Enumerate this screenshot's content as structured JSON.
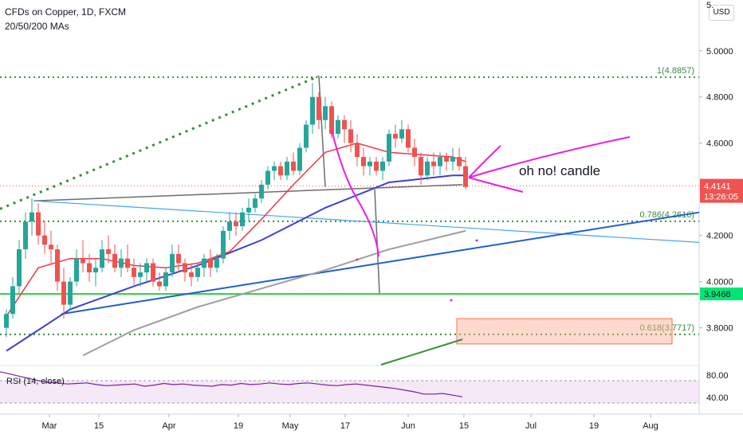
{
  "header": {
    "title": "CFDs on Copper, 1D, FXCM",
    "indicator": "20/50/200 MAs"
  },
  "currency_button": "USD",
  "annotation_text": "oh no! candle",
  "colors": {
    "up": "#26a69a",
    "down": "#ef5350",
    "ma20": "#f23645",
    "ma50": "#3f3fd6",
    "ma200": "#9e9e9e",
    "fib": "#388e3c",
    "support": "#2ecc40",
    "trend_blue": "#1e5fd1",
    "trend_light": "#42a5f5",
    "magenta": "#e91ee0",
    "rsi": "#7b1fa2"
  },
  "chart_data": [
    {
      "type": "candlestick",
      "title": "CFDs on Copper, 1D, FXCM",
      "x_ticks": [
        "Mar",
        "15",
        "Apr",
        "19",
        "May",
        "17",
        "Jun",
        "15",
        "Jul",
        "19",
        "Aug"
      ],
      "y_ticks": [
        "5.0000",
        "4.8000",
        "4.6000",
        "4.4000",
        "4.2000",
        "4.0000",
        "3.8000"
      ],
      "y_top_tick_partial": "5.",
      "ylim": [
        3.64,
        5.22
      ],
      "last_price": "4.4141",
      "countdown": "13:26:05",
      "support_level": "3.9468",
      "fib_levels": [
        {
          "label": "1(4.8857)",
          "value": 4.8857
        },
        {
          "label": "0.786(4.2616)",
          "value": 4.2616
        },
        {
          "label": "0.618(3.7717)",
          "value": 3.7717
        }
      ],
      "ohlc": [
        [
          3.8,
          3.88,
          3.76,
          3.86
        ],
        [
          3.86,
          4.02,
          3.84,
          3.98
        ],
        [
          3.98,
          4.18,
          3.95,
          4.14
        ],
        [
          4.14,
          4.3,
          4.1,
          4.26
        ],
        [
          4.26,
          4.36,
          4.2,
          4.3
        ],
        [
          4.3,
          4.34,
          4.16,
          4.2
        ],
        [
          4.2,
          4.26,
          4.12,
          4.16
        ],
        [
          4.16,
          4.22,
          4.08,
          4.14
        ],
        [
          4.14,
          4.16,
          3.96,
          4.0
        ],
        [
          4.0,
          4.06,
          3.84,
          3.9
        ],
        [
          3.9,
          4.02,
          3.88,
          4.0
        ],
        [
          4.0,
          4.14,
          3.98,
          4.1
        ],
        [
          4.1,
          4.18,
          4.04,
          4.08
        ],
        [
          4.08,
          4.12,
          4.0,
          4.04
        ],
        [
          4.04,
          4.1,
          3.98,
          4.06
        ],
        [
          4.06,
          4.18,
          4.04,
          4.14
        ],
        [
          4.14,
          4.2,
          4.08,
          4.12
        ],
        [
          4.12,
          4.16,
          4.04,
          4.06
        ],
        [
          4.06,
          4.14,
          4.02,
          4.1
        ],
        [
          4.1,
          4.16,
          4.04,
          4.06
        ],
        [
          4.06,
          4.1,
          3.98,
          4.02
        ],
        [
          4.02,
          4.08,
          3.98,
          4.04
        ],
        [
          4.04,
          4.1,
          4.0,
          4.08
        ],
        [
          4.08,
          4.1,
          3.98,
          4.0
        ],
        [
          4.0,
          4.04,
          3.96,
          3.98
        ],
        [
          3.98,
          4.06,
          3.96,
          4.04
        ],
        [
          4.04,
          4.16,
          4.02,
          4.12
        ],
        [
          4.12,
          4.16,
          4.04,
          4.08
        ],
        [
          4.08,
          4.1,
          4.0,
          4.04
        ],
        [
          4.04,
          4.08,
          3.98,
          4.02
        ],
        [
          4.02,
          4.08,
          4.0,
          4.06
        ],
        [
          4.06,
          4.12,
          4.02,
          4.1
        ],
        [
          4.1,
          4.14,
          4.02,
          4.06
        ],
        [
          4.06,
          4.12,
          4.04,
          4.1
        ],
        [
          4.1,
          4.24,
          4.08,
          4.22
        ],
        [
          4.22,
          4.3,
          4.18,
          4.26
        ],
        [
          4.26,
          4.3,
          4.2,
          4.24
        ],
        [
          4.24,
          4.32,
          4.22,
          4.3
        ],
        [
          4.3,
          4.36,
          4.26,
          4.32
        ],
        [
          4.32,
          4.38,
          4.3,
          4.36
        ],
        [
          4.36,
          4.44,
          4.34,
          4.42
        ],
        [
          4.42,
          4.5,
          4.4,
          4.48
        ],
        [
          4.48,
          4.52,
          4.44,
          4.5
        ],
        [
          4.5,
          4.52,
          4.44,
          4.46
        ],
        [
          4.46,
          4.54,
          4.44,
          4.52
        ],
        [
          4.52,
          4.56,
          4.46,
          4.48
        ],
        [
          4.48,
          4.6,
          4.46,
          4.58
        ],
        [
          4.58,
          4.7,
          4.56,
          4.68
        ],
        [
          4.68,
          4.86,
          4.64,
          4.8
        ],
        [
          4.8,
          4.82,
          4.66,
          4.7
        ],
        [
          4.7,
          4.8,
          4.66,
          4.76
        ],
        [
          4.76,
          4.78,
          4.62,
          4.64
        ],
        [
          4.64,
          4.72,
          4.62,
          4.7
        ],
        [
          4.7,
          4.72,
          4.6,
          4.66
        ],
        [
          4.66,
          4.7,
          4.56,
          4.6
        ],
        [
          4.6,
          4.64,
          4.5,
          4.54
        ],
        [
          4.54,
          4.58,
          4.46,
          4.5
        ],
        [
          4.5,
          4.54,
          4.46,
          4.52
        ],
        [
          4.52,
          4.54,
          4.46,
          4.48
        ],
        [
          4.48,
          4.54,
          4.44,
          4.52
        ],
        [
          4.52,
          4.66,
          4.5,
          4.64
        ],
        [
          4.64,
          4.68,
          4.58,
          4.62
        ],
        [
          4.62,
          4.7,
          4.6,
          4.66
        ],
        [
          4.66,
          4.68,
          4.56,
          4.58
        ],
        [
          4.58,
          4.62,
          4.5,
          4.54
        ],
        [
          4.54,
          4.56,
          4.42,
          4.46
        ],
        [
          4.46,
          4.54,
          4.44,
          4.52
        ],
        [
          4.52,
          4.56,
          4.46,
          4.5
        ],
        [
          4.5,
          4.56,
          4.46,
          4.54
        ],
        [
          4.54,
          4.56,
          4.48,
          4.52
        ],
        [
          4.52,
          4.58,
          4.48,
          4.54
        ],
        [
          4.54,
          4.58,
          4.48,
          4.5
        ],
        [
          4.5,
          4.54,
          4.4,
          4.41
        ]
      ],
      "ma20": [
        [
          0,
          3.85
        ],
        [
          5,
          4.06
        ],
        [
          10,
          4.1
        ],
        [
          15,
          4.1
        ],
        [
          20,
          4.07
        ],
        [
          25,
          4.06
        ],
        [
          30,
          4.08
        ],
        [
          35,
          4.13
        ],
        [
          40,
          4.27
        ],
        [
          45,
          4.42
        ],
        [
          50,
          4.56
        ],
        [
          55,
          4.6
        ],
        [
          60,
          4.56
        ],
        [
          65,
          4.55
        ],
        [
          70,
          4.54
        ],
        [
          72,
          4.52
        ]
      ],
      "ma50": [
        [
          0,
          3.7
        ],
        [
          10,
          3.88
        ],
        [
          20,
          3.98
        ],
        [
          30,
          4.07
        ],
        [
          40,
          4.18
        ],
        [
          50,
          4.32
        ],
        [
          60,
          4.43
        ],
        [
          70,
          4.46
        ],
        [
          72,
          4.46
        ]
      ],
      "ma200": [
        [
          12,
          3.68
        ],
        [
          20,
          3.79
        ],
        [
          30,
          3.89
        ],
        [
          40,
          3.97
        ],
        [
          50,
          4.05
        ],
        [
          60,
          4.14
        ],
        [
          72,
          4.22
        ]
      ],
      "rsi": {
        "label": "RSI (14, close)",
        "ticks": [
          "80.00",
          "40.00"
        ],
        "values": [
          86,
          82,
          78,
          74,
          70,
          67,
          66,
          64,
          65,
          66,
          63,
          61,
          62,
          63,
          64,
          60,
          62,
          65,
          63,
          64,
          62,
          61,
          60,
          63,
          62,
          65,
          63,
          64,
          66,
          64,
          63,
          65,
          66,
          64,
          62,
          61,
          63,
          64,
          62,
          60,
          58,
          56,
          53,
          50,
          46,
          46,
          47,
          44,
          41
        ]
      }
    }
  ]
}
